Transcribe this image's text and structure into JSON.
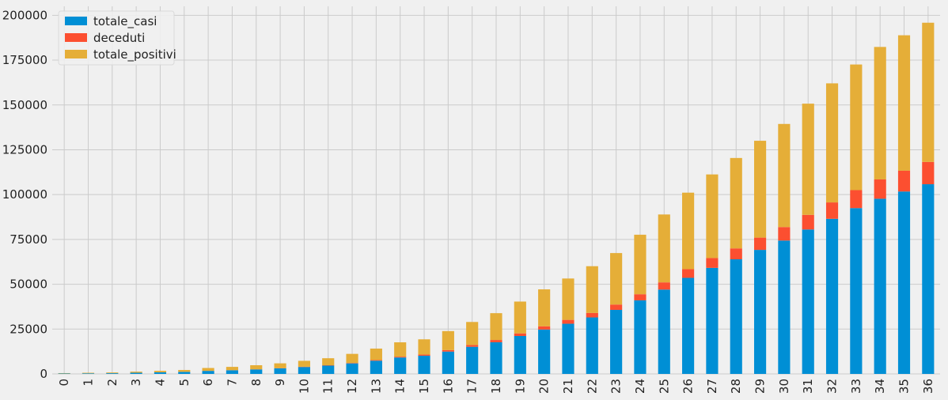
{
  "chart_data": {
    "type": "bar",
    "stacked": true,
    "title": "",
    "xlabel": "",
    "ylabel": "",
    "ylim": [
      0,
      205000
    ],
    "yticks": [
      0,
      25000,
      50000,
      75000,
      100000,
      125000,
      150000,
      175000,
      200000
    ],
    "ytick_labels": [
      "0",
      "25000",
      "50000",
      "75000",
      "100000",
      "125000",
      "150000",
      "175000",
      "200000"
    ],
    "categories": [
      "0",
      "1",
      "2",
      "3",
      "4",
      "5",
      "6",
      "7",
      "8",
      "9",
      "10",
      "11",
      "12",
      "13",
      "14",
      "15",
      "16",
      "17",
      "18",
      "19",
      "20",
      "21",
      "22",
      "23",
      "24",
      "25",
      "26",
      "27",
      "28",
      "29",
      "30",
      "31",
      "32",
      "33",
      "34",
      "35",
      "36"
    ],
    "grid": true,
    "legend_position": "top-left",
    "series": [
      {
        "name": "totale_casi",
        "color": "#008fd5",
        "values": [
          229,
          322,
          400,
          650,
          888,
          1128,
          1694,
          2036,
          2502,
          3089,
          3858,
          4636,
          5883,
          7375,
          9172,
          10149,
          12462,
          15113,
          17660,
          21157,
          24747,
          27980,
          31506,
          35713,
          41035,
          47021,
          53578,
          59138,
          63927,
          69176,
          74386,
          80539,
          86498,
          92472,
          97689,
          101739,
          105792
        ]
      },
      {
        "name": "deceduti",
        "color": "#fc4f30",
        "values": [
          7,
          10,
          12,
          17,
          21,
          29,
          34,
          52,
          79,
          107,
          148,
          197,
          233,
          366,
          463,
          631,
          827,
          1016,
          1266,
          1441,
          1809,
          2158,
          2503,
          2978,
          3405,
          4032,
          4825,
          5476,
          6077,
          6820,
          7503,
          8165,
          9134,
          10023,
          10779,
          11591,
          12428
        ]
      },
      {
        "name": "totale_positivi",
        "color": "#e5ae38",
        "values": [
          221,
          311,
          385,
          588,
          821,
          1049,
          1577,
          1835,
          2263,
          2706,
          3296,
          3916,
          5061,
          6387,
          7985,
          8514,
          10590,
          12839,
          14955,
          17750,
          20603,
          23073,
          26062,
          28710,
          33190,
          37860,
          42681,
          46638,
          50418,
          54030,
          57521,
          62013,
          66414,
          70065,
          73880,
          75528,
          77635
        ]
      }
    ]
  }
}
